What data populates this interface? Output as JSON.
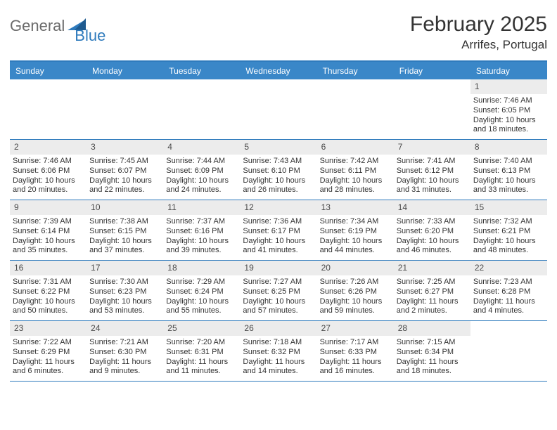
{
  "logo": {
    "part1": "General",
    "part2": "Blue"
  },
  "title": "February 2025",
  "location": "Arrifes, Portugal",
  "colors": {
    "header_bg": "#3a87c8",
    "border": "#2f7bbd",
    "daynum_bg": "#ececec",
    "text": "#333333",
    "logo_gray": "#6b6b6b",
    "logo_blue": "#2f7bbd",
    "page_bg": "#ffffff"
  },
  "day_headers": [
    "Sunday",
    "Monday",
    "Tuesday",
    "Wednesday",
    "Thursday",
    "Friday",
    "Saturday"
  ],
  "weeks": [
    [
      {
        "empty": true
      },
      {
        "empty": true
      },
      {
        "empty": true
      },
      {
        "empty": true
      },
      {
        "empty": true
      },
      {
        "empty": true
      },
      {
        "day": "1",
        "sunrise": "Sunrise: 7:46 AM",
        "sunset": "Sunset: 6:05 PM",
        "daylight": "Daylight: 10 hours and 18 minutes."
      }
    ],
    [
      {
        "day": "2",
        "sunrise": "Sunrise: 7:46 AM",
        "sunset": "Sunset: 6:06 PM",
        "daylight": "Daylight: 10 hours and 20 minutes."
      },
      {
        "day": "3",
        "sunrise": "Sunrise: 7:45 AM",
        "sunset": "Sunset: 6:07 PM",
        "daylight": "Daylight: 10 hours and 22 minutes."
      },
      {
        "day": "4",
        "sunrise": "Sunrise: 7:44 AM",
        "sunset": "Sunset: 6:09 PM",
        "daylight": "Daylight: 10 hours and 24 minutes."
      },
      {
        "day": "5",
        "sunrise": "Sunrise: 7:43 AM",
        "sunset": "Sunset: 6:10 PM",
        "daylight": "Daylight: 10 hours and 26 minutes."
      },
      {
        "day": "6",
        "sunrise": "Sunrise: 7:42 AM",
        "sunset": "Sunset: 6:11 PM",
        "daylight": "Daylight: 10 hours and 28 minutes."
      },
      {
        "day": "7",
        "sunrise": "Sunrise: 7:41 AM",
        "sunset": "Sunset: 6:12 PM",
        "daylight": "Daylight: 10 hours and 31 minutes."
      },
      {
        "day": "8",
        "sunrise": "Sunrise: 7:40 AM",
        "sunset": "Sunset: 6:13 PM",
        "daylight": "Daylight: 10 hours and 33 minutes."
      }
    ],
    [
      {
        "day": "9",
        "sunrise": "Sunrise: 7:39 AM",
        "sunset": "Sunset: 6:14 PM",
        "daylight": "Daylight: 10 hours and 35 minutes."
      },
      {
        "day": "10",
        "sunrise": "Sunrise: 7:38 AM",
        "sunset": "Sunset: 6:15 PM",
        "daylight": "Daylight: 10 hours and 37 minutes."
      },
      {
        "day": "11",
        "sunrise": "Sunrise: 7:37 AM",
        "sunset": "Sunset: 6:16 PM",
        "daylight": "Daylight: 10 hours and 39 minutes."
      },
      {
        "day": "12",
        "sunrise": "Sunrise: 7:36 AM",
        "sunset": "Sunset: 6:17 PM",
        "daylight": "Daylight: 10 hours and 41 minutes."
      },
      {
        "day": "13",
        "sunrise": "Sunrise: 7:34 AM",
        "sunset": "Sunset: 6:19 PM",
        "daylight": "Daylight: 10 hours and 44 minutes."
      },
      {
        "day": "14",
        "sunrise": "Sunrise: 7:33 AM",
        "sunset": "Sunset: 6:20 PM",
        "daylight": "Daylight: 10 hours and 46 minutes."
      },
      {
        "day": "15",
        "sunrise": "Sunrise: 7:32 AM",
        "sunset": "Sunset: 6:21 PM",
        "daylight": "Daylight: 10 hours and 48 minutes."
      }
    ],
    [
      {
        "day": "16",
        "sunrise": "Sunrise: 7:31 AM",
        "sunset": "Sunset: 6:22 PM",
        "daylight": "Daylight: 10 hours and 50 minutes."
      },
      {
        "day": "17",
        "sunrise": "Sunrise: 7:30 AM",
        "sunset": "Sunset: 6:23 PM",
        "daylight": "Daylight: 10 hours and 53 minutes."
      },
      {
        "day": "18",
        "sunrise": "Sunrise: 7:29 AM",
        "sunset": "Sunset: 6:24 PM",
        "daylight": "Daylight: 10 hours and 55 minutes."
      },
      {
        "day": "19",
        "sunrise": "Sunrise: 7:27 AM",
        "sunset": "Sunset: 6:25 PM",
        "daylight": "Daylight: 10 hours and 57 minutes."
      },
      {
        "day": "20",
        "sunrise": "Sunrise: 7:26 AM",
        "sunset": "Sunset: 6:26 PM",
        "daylight": "Daylight: 10 hours and 59 minutes."
      },
      {
        "day": "21",
        "sunrise": "Sunrise: 7:25 AM",
        "sunset": "Sunset: 6:27 PM",
        "daylight": "Daylight: 11 hours and 2 minutes."
      },
      {
        "day": "22",
        "sunrise": "Sunrise: 7:23 AM",
        "sunset": "Sunset: 6:28 PM",
        "daylight": "Daylight: 11 hours and 4 minutes."
      }
    ],
    [
      {
        "day": "23",
        "sunrise": "Sunrise: 7:22 AM",
        "sunset": "Sunset: 6:29 PM",
        "daylight": "Daylight: 11 hours and 6 minutes."
      },
      {
        "day": "24",
        "sunrise": "Sunrise: 7:21 AM",
        "sunset": "Sunset: 6:30 PM",
        "daylight": "Daylight: 11 hours and 9 minutes."
      },
      {
        "day": "25",
        "sunrise": "Sunrise: 7:20 AM",
        "sunset": "Sunset: 6:31 PM",
        "daylight": "Daylight: 11 hours and 11 minutes."
      },
      {
        "day": "26",
        "sunrise": "Sunrise: 7:18 AM",
        "sunset": "Sunset: 6:32 PM",
        "daylight": "Daylight: 11 hours and 14 minutes."
      },
      {
        "day": "27",
        "sunrise": "Sunrise: 7:17 AM",
        "sunset": "Sunset: 6:33 PM",
        "daylight": "Daylight: 11 hours and 16 minutes."
      },
      {
        "day": "28",
        "sunrise": "Sunrise: 7:15 AM",
        "sunset": "Sunset: 6:34 PM",
        "daylight": "Daylight: 11 hours and 18 minutes."
      },
      {
        "empty": true
      }
    ]
  ]
}
